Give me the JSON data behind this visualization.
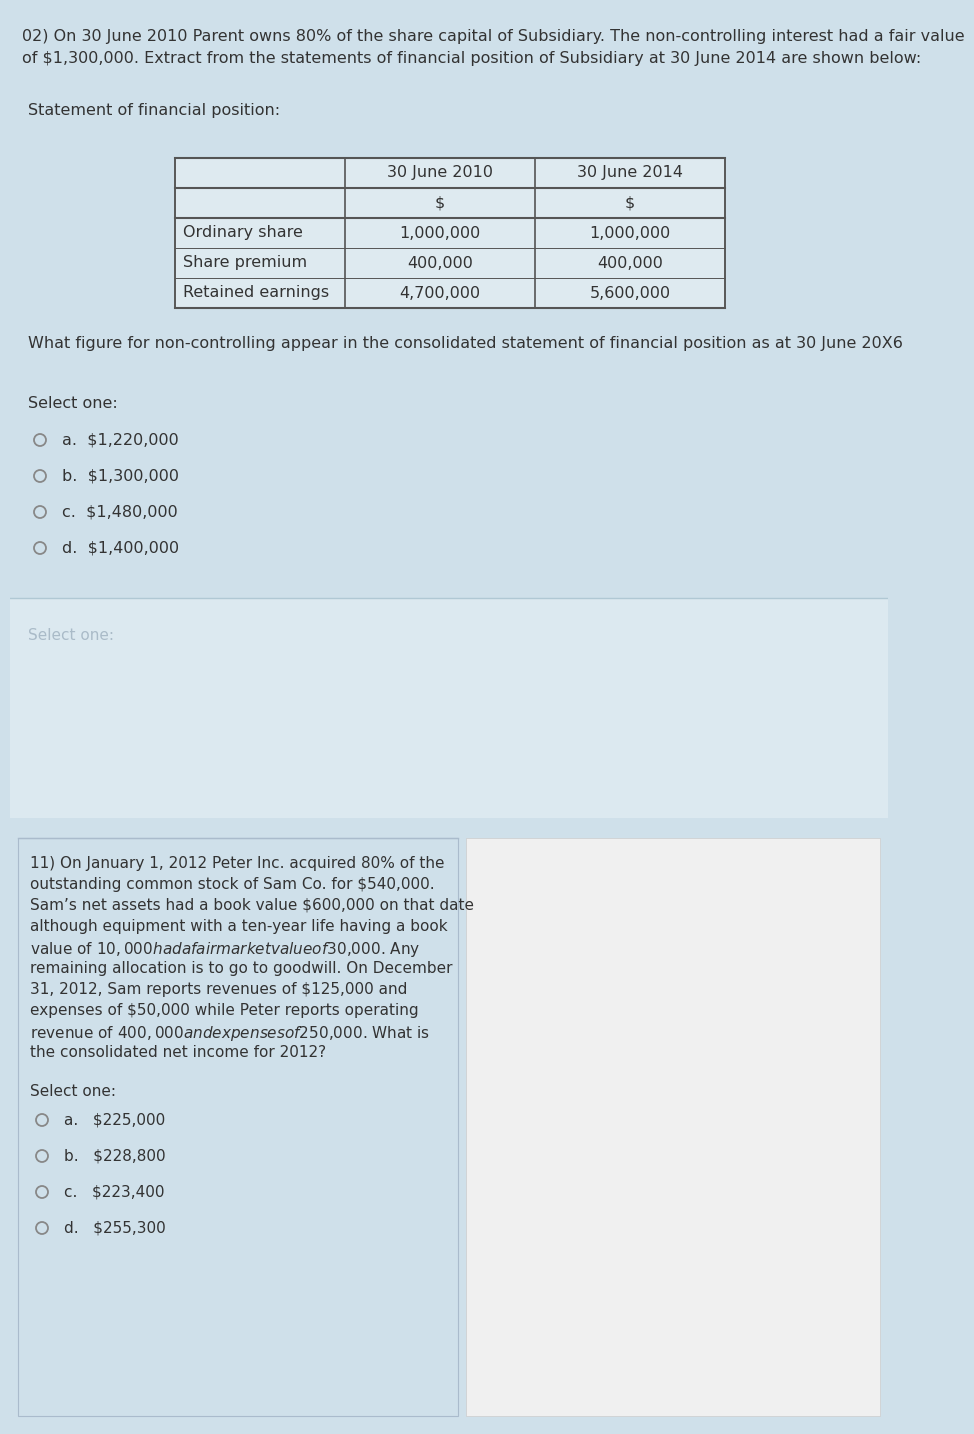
{
  "bg_color": "#cfe0ea",
  "white_color": "#ffffff",
  "light_gray": "#e8e8e8",
  "text_color": "#555555",
  "dark_text": "#333333",
  "border_color": "#888888",
  "table_bg": "#e8f0f5",
  "q2_header_line1": "02) On 30 June 2010 Parent owns 80% of the share capital of Subsidiary. The non-controlling interest had a fair value",
  "q2_header_line2": "of $1,300,000. Extract from the statements of financial position of Subsidiary at 30 June 2014 are shown below:",
  "sfp_label": "Statement of financial position:",
  "table_headers": [
    "30 June 2010",
    "30 June 2014"
  ],
  "table_subheaders": [
    "$",
    "$"
  ],
  "table_rows": [
    [
      "Ordinary share",
      "1,000,000",
      "1,000,000"
    ],
    [
      "Share premium",
      "400,000",
      "400,000"
    ],
    [
      "Retained earnings",
      "4,700,000",
      "5,600,000"
    ]
  ],
  "q2_question": "What figure for non-controlling appear in the consolidated statement of financial position as at 30 June 20X6",
  "q2_select": "Select one:",
  "q2_options": [
    "a.  $1,220,000",
    "b.  $1,300,000",
    "c.  $1,480,000",
    "d.  $1,400,000"
  ],
  "q11_text_lines": [
    "11) On January 1, 2012 Peter Inc. acquired 80% of the",
    "outstanding common stock of Sam Co. for $540,000.",
    "Sam’s net assets had a book value $600,000 on that date",
    "although equipment with a ten-year life having a book",
    "value of $10,000 had a fair market value of $30,000. Any",
    "remaining allocation is to go to goodwill. On December",
    "31, 2012, Sam reports revenues of $125,000 and",
    "expenses of $50,000 while Peter reports operating",
    "revenue of $400,000 and expenses of $250,000. What is",
    "the consolidated net income for 2012?"
  ],
  "q11_select": "Select one:",
  "q11_options": [
    "a.   $225,000",
    "b.   $228,800",
    "c.   $223,400",
    "d.   $255,300"
  ]
}
